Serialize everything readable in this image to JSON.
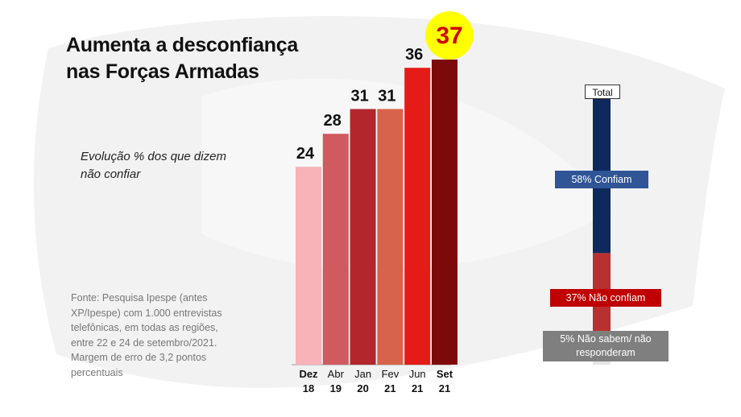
{
  "title": "Aumenta a desconfiança nas Forças Armadas",
  "subtitle": "Evolução % dos que dizem não confiar",
  "source": "Fonte: Pesquisa Ipespe (antes XP/Ipespe) com 1.000 entrevistas telefônicas, em todas as regiões, entre 22 e 24 de setembro/2021. Margem de erro de 3,2 pontos percentuais",
  "chart_data": [
    {
      "type": "bar",
      "title": "Aumenta a desconfiança nas Forças Armadas",
      "subtitle": "Evolução % dos que dizem não confiar",
      "categories": [
        [
          "Dez",
          "18"
        ],
        [
          "Abr",
          "19"
        ],
        [
          "Jan",
          "20"
        ],
        [
          "Fev",
          "21"
        ],
        [
          "Jun",
          "21"
        ],
        [
          "Set",
          "21"
        ]
      ],
      "values": [
        24,
        28,
        31,
        31,
        36,
        37
      ],
      "value_labels": [
        "24",
        "28",
        "31",
        "31",
        "36",
        "37"
      ],
      "colors": [
        "#f7b3b8",
        "#cf5a5f",
        "#b3262c",
        "#d6634a",
        "#e41b17",
        "#7d0a0a"
      ],
      "highlight": {
        "index": 5,
        "color": "#ffff00",
        "text_color": "#d00000"
      },
      "ylim": [
        0,
        37
      ]
    },
    {
      "type": "bar",
      "stacked": true,
      "category": "Total",
      "series": [
        {
          "name": "58% Confiam",
          "value": 58,
          "color": "#0e2a5c",
          "label_bg": "#2f5597"
        },
        {
          "name": "37% Não confiam",
          "value": 37,
          "color": "#b83030",
          "label_bg": "#c00000"
        },
        {
          "name": "5% Não sabem/ não responderam",
          "value": 5,
          "color": "#e5e5e5",
          "label_bg": "#7f7f7f"
        }
      ]
    }
  ]
}
